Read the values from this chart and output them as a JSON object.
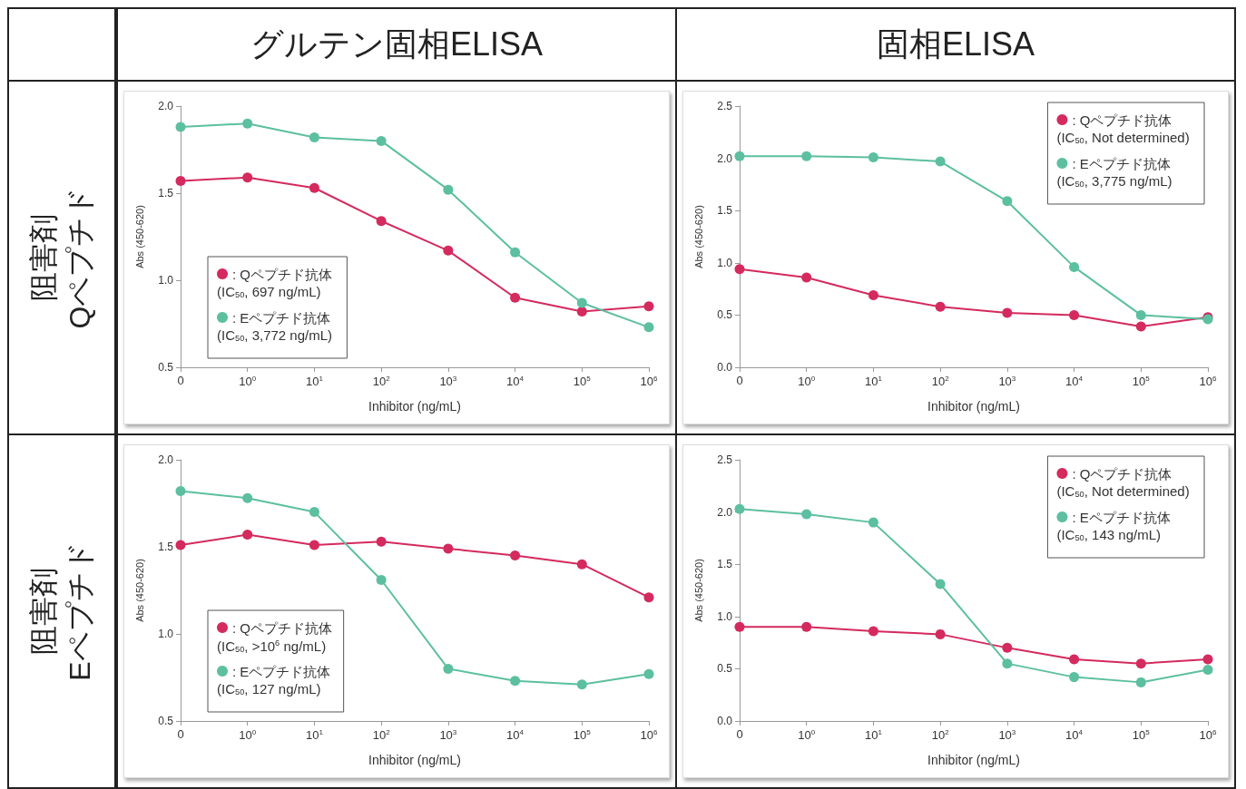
{
  "chart_data": [
    {
      "type": "line",
      "title": "グルテン固相ELISA",
      "subtitle": "阻害剤\nQペプチド",
      "xlabel": "Inhibitor (ng/mL)",
      "ylabel": "Abs (450-620)",
      "categories": [
        "0",
        "10$^{0}$",
        "10$^{1}$",
        "10$^{2}$",
        "10$^{3}$",
        "10$^{4}$",
        "10$^{5}$",
        "10$^{6}$"
      ],
      "ylim": [
        0.5,
        2.0
      ],
      "yticks": [
        {
          "value": 0.5,
          "label": "0.5"
        },
        {
          "value": 1.0,
          "label": "1.0"
        },
        {
          "value": 1.5,
          "label": "1.5"
        },
        {
          "value": 2.0,
          "label": "2.0"
        }
      ],
      "grid": false,
      "legend": "bottom left",
      "marker": "circle",
      "annotations": [
        "(IC$_{50}$, 697 ng/mL)",
        "(IC$_{50}$, 3,772 ng/mL)"
      ],
      "series": [
        {
          "name": ": Qペプチド抗体",
          "color": "#d42a5e",
          "values": [
            1.57,
            1.59,
            1.53,
            1.34,
            1.17,
            0.9,
            0.82,
            0.85
          ]
        },
        {
          "name": ": Eペプチド抗体",
          "color": "#5cbfa0",
          "values": [
            1.88,
            1.9,
            1.82,
            1.8,
            1.52,
            1.16,
            0.87,
            0.73
          ]
        }
      ]
    },
    {
      "type": "line",
      "title": "固相ELISA",
      "xlabel": "Inhibitor (ng/mL)",
      "ylabel": "Abs (450-620)",
      "categories": [
        "0",
        "10$^{0}$",
        "10$^{1}$",
        "10$^{2}$",
        "10$^{3}$",
        "10$^{4}$",
        "10$^{5}$",
        "10$^{6}$"
      ],
      "ylim": [
        0,
        2.5
      ],
      "yticks": [
        {
          "value": 0,
          "label": "0.0"
        },
        {
          "value": 0.5,
          "label": "0.5"
        },
        {
          "value": 1.0,
          "label": "1.0"
        },
        {
          "value": 1.5,
          "label": "1.5"
        },
        {
          "value": 2.0,
          "label": "2.0"
        },
        {
          "value": 2.5,
          "label": "2.5"
        }
      ],
      "grid": false,
      "legend": "top right",
      "marker": "circle",
      "annotations": [
        "(IC$_{50}$, Not determined)",
        "(IC$_{50}$, 3,775 ng/mL)"
      ],
      "series": [
        {
          "name": ": Qペプチド抗体",
          "color": "#d42a5e",
          "values": [
            0.94,
            0.86,
            0.69,
            0.58,
            0.52,
            0.5,
            0.39,
            0.48
          ]
        },
        {
          "name": ": Eペプチド抗体",
          "color": "#5cbfa0",
          "values": [
            2.02,
            2.02,
            2.01,
            1.97,
            1.59,
            0.96,
            0.5,
            0.46
          ]
        }
      ]
    },
    {
      "type": "line",
      "subtitle": "阻害剤\nEペプチド",
      "xlabel": "Inhibitor (ng/mL)",
      "ylabel": "Abs (450-620)",
      "categories": [
        "0",
        "10$^{0}$",
        "10$^{1}$",
        "10$^{2}$",
        "10$^{3}$",
        "10$^{4}$",
        "10$^{5}$",
        "10$^{6}$"
      ],
      "ylim": [
        0.5,
        2.0
      ],
      "yticks": [
        {
          "value": 0.5,
          "label": "0.5"
        },
        {
          "value": 1.0,
          "label": "1.0"
        },
        {
          "value": 1.5,
          "label": "1.5"
        },
        {
          "value": 2.0,
          "label": "2.0"
        }
      ],
      "grid": false,
      "legend": "bottom left",
      "marker": "circle",
      "annotations": [
        "(IC$_{50}$, >10$^{6}$ ng/mL)",
        "(IC$_{50}$, 127 ng/mL)"
      ],
      "series": [
        {
          "name": ": Qペプチド抗体",
          "color": "#d42a5e",
          "values": [
            1.51,
            1.57,
            1.51,
            1.53,
            1.49,
            1.45,
            1.4,
            1.21
          ]
        },
        {
          "name": ": Eペプチド抗体",
          "color": "#5cbfa0",
          "values": [
            1.82,
            1.78,
            1.7,
            1.31,
            0.8,
            0.73,
            0.71,
            0.77
          ]
        }
      ]
    },
    {
      "type": "line",
      "xlabel": "Inhibitor (ng/mL)",
      "ylabel": "Abs (450-620)",
      "categories": [
        "0",
        "10$^{0}$",
        "10$^{1}$",
        "10$^{2}$",
        "10$^{3}$",
        "10$^{4}$",
        "10$^{5}$",
        "10$^{6}$"
      ],
      "ylim": [
        0,
        2.5
      ],
      "yticks": [
        {
          "value": 0,
          "label": "0.0"
        },
        {
          "value": 0.5,
          "label": "0.5"
        },
        {
          "value": 1.0,
          "label": "1.0"
        },
        {
          "value": 1.5,
          "label": "1.5"
        },
        {
          "value": 2.0,
          "label": "2.0"
        },
        {
          "value": 2.5,
          "label": "2.5"
        }
      ],
      "grid": false,
      "legend": "top right",
      "marker": "circle",
      "annotations": [
        "(IC$_{50}$, Not determined)",
        "(IC$_{50}$, 143 ng/mL)"
      ],
      "series": [
        {
          "name": ": Qペプチド抗体",
          "color": "#d42a5e",
          "values": [
            0.9,
            0.9,
            0.86,
            0.83,
            0.7,
            0.59,
            0.55,
            0.59
          ]
        },
        {
          "name": ": Eペプチド抗体",
          "color": "#5cbfa0",
          "values": [
            2.03,
            1.98,
            1.9,
            1.31,
            0.55,
            0.42,
            0.37,
            0.49
          ]
        }
      ]
    }
  ]
}
